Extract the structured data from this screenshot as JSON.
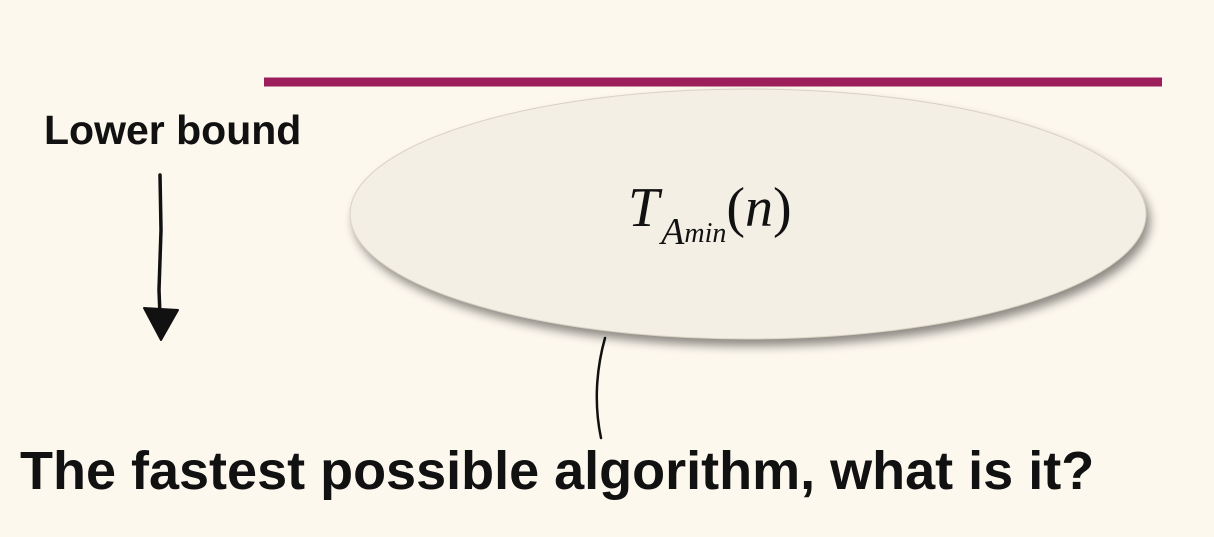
{
  "labels": {
    "lower_bound": "Lower bound",
    "caption": "The fastest possible algorithm, what is it?"
  },
  "formula": {
    "base": "T",
    "subscript": "A",
    "sub_subscript": "min",
    "open_paren": "(",
    "argument": "n",
    "close_paren": ")"
  },
  "colors": {
    "background": "#fdf8ee",
    "bound_line": "#9c1f5c",
    "ellipse_fill": "#f3efe4",
    "text": "#111111"
  }
}
